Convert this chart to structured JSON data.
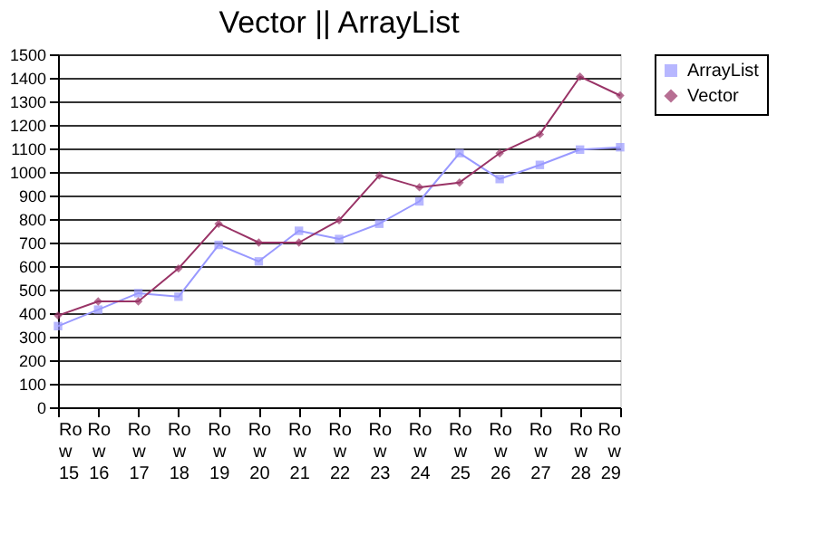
{
  "chart_data": {
    "type": "line",
    "title": "Vector || ArrayList",
    "categories": [
      "Row 15",
      "Row 16",
      "Row 17",
      "Row 18",
      "Row 19",
      "Row 20",
      "Row 21",
      "Row 22",
      "Row 23",
      "Row 24",
      "Row 25",
      "Row 26",
      "Row 27",
      "Row 28",
      "Row 29"
    ],
    "series": [
      {
        "name": "ArrayList",
        "color": "#9999ff",
        "marker": "square",
        "values": [
          345,
          415,
          485,
          470,
          690,
          620,
          750,
          715,
          780,
          875,
          1080,
          970,
          1030,
          1095,
          1105
        ]
      },
      {
        "name": "Vector",
        "color": "#993366",
        "marker": "diamond",
        "values": [
          390,
          450,
          450,
          590,
          780,
          700,
          700,
          795,
          985,
          935,
          955,
          1080,
          1160,
          1405,
          1325
        ]
      }
    ],
    "ylim": [
      0,
      1500
    ],
    "yticks": [
      0,
      100,
      200,
      300,
      400,
      500,
      600,
      700,
      800,
      900,
      1000,
      1100,
      1200,
      1300,
      1400,
      1500
    ],
    "grid": "y",
    "legend": "right"
  }
}
